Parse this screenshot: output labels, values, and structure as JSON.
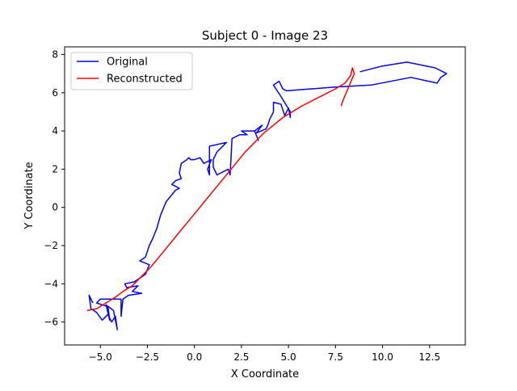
{
  "chart_data": {
    "type": "line",
    "title": "Subject 0 - Image 23",
    "xlabel": "X Coordinate",
    "ylabel": "Y Coordinate",
    "xlim": [
      -6.9,
      14.4
    ],
    "ylim": [
      -7.2,
      8.4
    ],
    "xticks": [
      -5.0,
      -2.5,
      0.0,
      2.5,
      5.0,
      7.5,
      10.0,
      12.5
    ],
    "xtick_labels": [
      "−5.0",
      "−2.5",
      "0.0",
      "2.5",
      "5.0",
      "7.5",
      "10.0",
      "12.5"
    ],
    "yticks": [
      -6,
      -4,
      -2,
      0,
      2,
      4,
      6,
      8
    ],
    "ytick_labels": [
      "−6",
      "−4",
      "−2",
      "0",
      "2",
      "4",
      "6",
      "8"
    ],
    "grid": false,
    "legend_position": "upper-left",
    "series": [
      {
        "name": "Original",
        "color": "#0000ff",
        "points": [
          [
            -5.4,
            -5.0
          ],
          [
            -5.6,
            -4.6
          ],
          [
            -5.5,
            -5.3
          ],
          [
            -5.2,
            -5.5
          ],
          [
            -4.9,
            -5.9
          ],
          [
            -4.6,
            -5.6
          ],
          [
            -4.4,
            -6.0
          ],
          [
            -4.2,
            -5.7
          ],
          [
            -4.1,
            -6.4
          ],
          [
            -4.3,
            -5.4
          ],
          [
            -4.7,
            -5.1
          ],
          [
            -4.5,
            -5.9
          ],
          [
            -4.6,
            -5.2
          ],
          [
            -5.2,
            -5.0
          ],
          [
            -5.0,
            -4.8
          ],
          [
            -4.6,
            -4.8
          ],
          [
            -3.9,
            -4.8
          ],
          [
            -3.9,
            -5.7
          ],
          [
            -3.8,
            -4.8
          ],
          [
            -3.5,
            -4.6
          ],
          [
            -2.8,
            -4.5
          ],
          [
            -3.3,
            -4.4
          ],
          [
            -3.0,
            -4.1
          ],
          [
            -3.6,
            -4.2
          ],
          [
            -3.7,
            -4.0
          ],
          [
            -3.2,
            -3.9
          ],
          [
            -2.9,
            -3.7
          ],
          [
            -2.6,
            -3.5
          ],
          [
            -2.4,
            -3.0
          ],
          [
            -2.9,
            -2.8
          ],
          [
            -2.6,
            -2.6
          ],
          [
            -2.4,
            -2.0
          ],
          [
            -2.2,
            -1.6
          ],
          [
            -2.0,
            -1.1
          ],
          [
            -1.8,
            -0.4
          ],
          [
            -1.5,
            0.3
          ],
          [
            -1.0,
            0.9
          ],
          [
            -0.8,
            1.0
          ],
          [
            -1.2,
            1.2
          ],
          [
            -1.0,
            1.4
          ],
          [
            -0.7,
            1.5
          ],
          [
            -0.8,
            1.8
          ],
          [
            -0.7,
            2.3
          ],
          [
            -0.4,
            2.5
          ],
          [
            -0.3,
            2.6
          ],
          [
            -0.2,
            2.5
          ],
          [
            0.0,
            2.5
          ],
          [
            0.3,
            2.6
          ],
          [
            0.5,
            2.3
          ],
          [
            0.9,
            2.5
          ],
          [
            0.7,
            2.0
          ],
          [
            0.8,
            1.7
          ],
          [
            0.8,
            3.2
          ],
          [
            1.7,
            3.4
          ],
          [
            1.2,
            2.9
          ],
          [
            1.0,
            2.5
          ],
          [
            1.0,
            2.1
          ],
          [
            1.2,
            1.7
          ],
          [
            1.8,
            2.0
          ],
          [
            1.9,
            1.7
          ],
          [
            2.0,
            3.6
          ],
          [
            2.4,
            3.8
          ],
          [
            2.8,
            3.8
          ],
          [
            2.5,
            4.0
          ],
          [
            3.2,
            4.0
          ],
          [
            3.4,
            3.5
          ],
          [
            3.2,
            4.0
          ],
          [
            3.6,
            4.3
          ],
          [
            3.3,
            3.9
          ],
          [
            3.8,
            4.1
          ],
          [
            3.9,
            4.3
          ],
          [
            4.0,
            4.6
          ],
          [
            4.2,
            5.0
          ],
          [
            4.2,
            5.5
          ],
          [
            4.6,
            5.4
          ],
          [
            4.8,
            4.8
          ],
          [
            5.0,
            5.2
          ],
          [
            5.1,
            4.7
          ],
          [
            5.1,
            5.0
          ],
          [
            4.6,
            5.8
          ],
          [
            4.2,
            6.4
          ],
          [
            4.5,
            6.6
          ],
          [
            4.7,
            6.2
          ],
          [
            4.9,
            6.1
          ],
          [
            7.5,
            6.3
          ],
          [
            9.4,
            6.4
          ],
          [
            11.5,
            6.8
          ],
          [
            12.9,
            6.5
          ],
          [
            13.1,
            6.8
          ],
          [
            13.4,
            7.0
          ],
          [
            12.8,
            7.3
          ],
          [
            11.3,
            7.6
          ],
          [
            10.0,
            7.4
          ],
          [
            8.8,
            7.1
          ]
        ]
      },
      {
        "name": "Reconstructed",
        "color": "#ff0000",
        "points": [
          [
            -5.7,
            -5.4
          ],
          [
            -5.2,
            -5.3
          ],
          [
            -4.7,
            -5.0
          ],
          [
            -4.2,
            -4.7
          ],
          [
            -3.8,
            -4.4
          ],
          [
            -3.3,
            -4.1
          ],
          [
            -2.8,
            -3.6
          ],
          [
            -2.3,
            -3.1
          ],
          [
            -1.8,
            -2.5
          ],
          [
            -1.3,
            -1.9
          ],
          [
            -0.8,
            -1.3
          ],
          [
            -0.3,
            -0.7
          ],
          [
            0.2,
            -0.1
          ],
          [
            0.7,
            0.5
          ],
          [
            1.2,
            1.1
          ],
          [
            1.7,
            1.7
          ],
          [
            2.2,
            2.3
          ],
          [
            2.7,
            2.9
          ],
          [
            3.2,
            3.4
          ],
          [
            3.7,
            3.9
          ],
          [
            4.2,
            4.3
          ],
          [
            4.7,
            4.7
          ],
          [
            5.2,
            5.0
          ],
          [
            5.7,
            5.3
          ],
          [
            6.3,
            5.6
          ],
          [
            6.9,
            5.9
          ],
          [
            7.5,
            6.2
          ],
          [
            8.0,
            6.5
          ],
          [
            8.3,
            6.9
          ],
          [
            8.4,
            7.3
          ],
          [
            8.5,
            7.0
          ],
          [
            8.2,
            6.3
          ],
          [
            7.9,
            5.6
          ],
          [
            7.8,
            5.3
          ]
        ]
      }
    ]
  }
}
